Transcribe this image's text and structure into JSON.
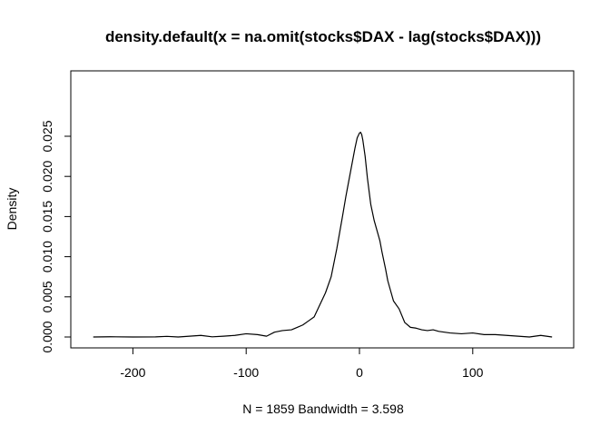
{
  "chart_data": {
    "type": "line",
    "title": "density.default(x = na.omit(stocks$DAX - lag(stocks$DAX)))",
    "xlabel": "N = 1859   Bandwidth = 3.598",
    "ylabel": "Density",
    "xlim": [
      -250,
      180
    ],
    "ylim": [
      0,
      0.026
    ],
    "x_ticks": [
      -200,
      -100,
      0,
      100
    ],
    "x_tick_labels": [
      "-200",
      "-100",
      "0",
      "100"
    ],
    "y_ticks": [
      0,
      0.005,
      0.01,
      0.015,
      0.02,
      0.025
    ],
    "y_tick_labels": [
      "0.000",
      "0.005",
      "0.010",
      "0.015",
      "0.020",
      "0.025"
    ],
    "grid": false,
    "series": [
      {
        "color": "#000000",
        "x": [
          -235,
          -220,
          -200,
          -180,
          -170,
          -160,
          -150,
          -140,
          -130,
          -120,
          -110,
          -100,
          -90,
          -82,
          -75,
          -68,
          -60,
          -55,
          -50,
          -45,
          -40,
          -35,
          -30,
          -25,
          -20,
          -15,
          -12,
          -10,
          -8,
          -6,
          -4,
          -2,
          0,
          1,
          2,
          3,
          5,
          7,
          10,
          13,
          15,
          18,
          20,
          23,
          25,
          28,
          30,
          35,
          40,
          45,
          50,
          55,
          60,
          65,
          70,
          75,
          80,
          90,
          100,
          110,
          120,
          130,
          140,
          150,
          160,
          170
        ],
        "y": [
          0.0,
          3e-05,
          0.0,
          1e-05,
          8e-05,
          0.0,
          0.0001,
          0.0002,
          2e-05,
          0.0001,
          0.0002,
          0.0004,
          0.0003,
          0.0001,
          0.0006,
          0.0008,
          0.0009,
          0.0012,
          0.0015,
          0.002,
          0.0025,
          0.004,
          0.0055,
          0.0075,
          0.011,
          0.015,
          0.0175,
          0.019,
          0.0205,
          0.022,
          0.0235,
          0.0248,
          0.0254,
          0.0255,
          0.0252,
          0.0245,
          0.0225,
          0.0198,
          0.0165,
          0.0145,
          0.0135,
          0.012,
          0.0105,
          0.0085,
          0.007,
          0.0055,
          0.0045,
          0.0035,
          0.0018,
          0.0012,
          0.0011,
          0.0009,
          0.0008,
          0.0009,
          0.0007,
          0.0006,
          0.0005,
          0.0004,
          0.0005,
          0.0003,
          0.0003,
          0.0002,
          0.0001,
          0.0,
          0.0002,
          0.0
        ]
      }
    ]
  }
}
